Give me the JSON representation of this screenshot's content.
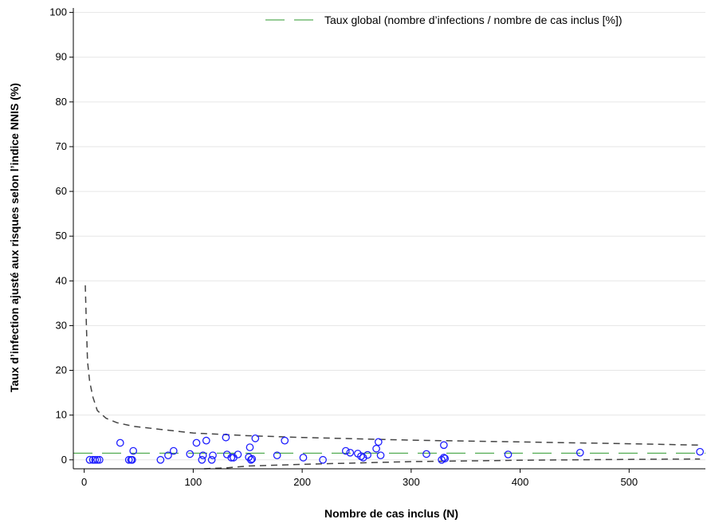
{
  "chart_data": {
    "type": "scatter",
    "title": "",
    "xlabel": "Nombre de cas inclus (N)",
    "ylabel": "Taux d’infection ajusté aux risques selon l’indice NNIS (%)",
    "xlim": [
      -10,
      570
    ],
    "ylim": [
      -2,
      101
    ],
    "xticks": [
      "0",
      "100",
      "200",
      "300",
      "400",
      "500"
    ],
    "yticks": [
      "0",
      "10",
      "20",
      "30",
      "40",
      "50",
      "60",
      "70",
      "80",
      "90",
      "100"
    ],
    "grid": "horizontal",
    "legend": {
      "position": "top-right",
      "entries": [
        "Taux global (nombre d’infections / nombre de cas inclus [%])"
      ]
    },
    "overall_rate": 1.5,
    "colors": {
      "points": "#1f1fff",
      "overall_line": "#2e9a2e",
      "limits": "#444444",
      "grid": "#e6e6e6"
    },
    "series": [
      {
        "type": "scatter",
        "x": [
          5,
          8,
          10,
          12,
          14,
          33,
          41,
          43,
          44,
          45,
          70,
          77,
          82,
          97,
          103,
          108,
          109,
          112,
          117,
          118,
          130,
          131,
          135,
          137,
          141,
          151,
          152,
          153,
          154,
          157,
          177,
          184,
          201,
          219,
          240,
          244,
          251,
          254,
          256,
          260,
          268,
          270,
          272,
          314,
          328,
          330,
          330,
          331,
          389,
          455,
          565
        ],
        "y": [
          0,
          0,
          0,
          0,
          0,
          3.8,
          0,
          0,
          0,
          2.0,
          0,
          1.0,
          2.0,
          1.3,
          3.8,
          0,
          1.0,
          4.3,
          0,
          1.0,
          5.0,
          1.2,
          0.5,
          0.5,
          1.2,
          0.6,
          2.8,
          0,
          0.2,
          4.8,
          1.0,
          4.3,
          0.5,
          0,
          2.0,
          1.6,
          1.4,
          0.8,
          0.5,
          1.1,
          2.5,
          4.0,
          1.0,
          1.3,
          0,
          0.5,
          3.3,
          0.3,
          1.2,
          1.6,
          1.8
        ]
      },
      {
        "name": "Taux global (nombre d’infections / nombre de cas inclus [%])",
        "type": "line",
        "x": [
          -10,
          570
        ],
        "y": [
          1.5,
          1.5
        ]
      },
      {
        "type": "line",
        "x": [
          1,
          2,
          3,
          5,
          8,
          12,
          20,
          30,
          45,
          70,
          100,
          150,
          200,
          300,
          400,
          500,
          565
        ],
        "y": [
          39.0,
          30.0,
          22.0,
          17.5,
          14.0,
          11.0,
          9.3,
          8.3,
          7.5,
          6.8,
          6.0,
          5.4,
          5.0,
          4.4,
          4.0,
          3.6,
          3.3
        ]
      },
      {
        "type": "line",
        "x": [
          110,
          130,
          150,
          200,
          250,
          300,
          400,
          500,
          565
        ],
        "y": [
          -2.0,
          -1.8,
          -1.4,
          -1.0,
          -0.7,
          -0.4,
          -0.1,
          0.1,
          0.2
        ]
      }
    ]
  }
}
